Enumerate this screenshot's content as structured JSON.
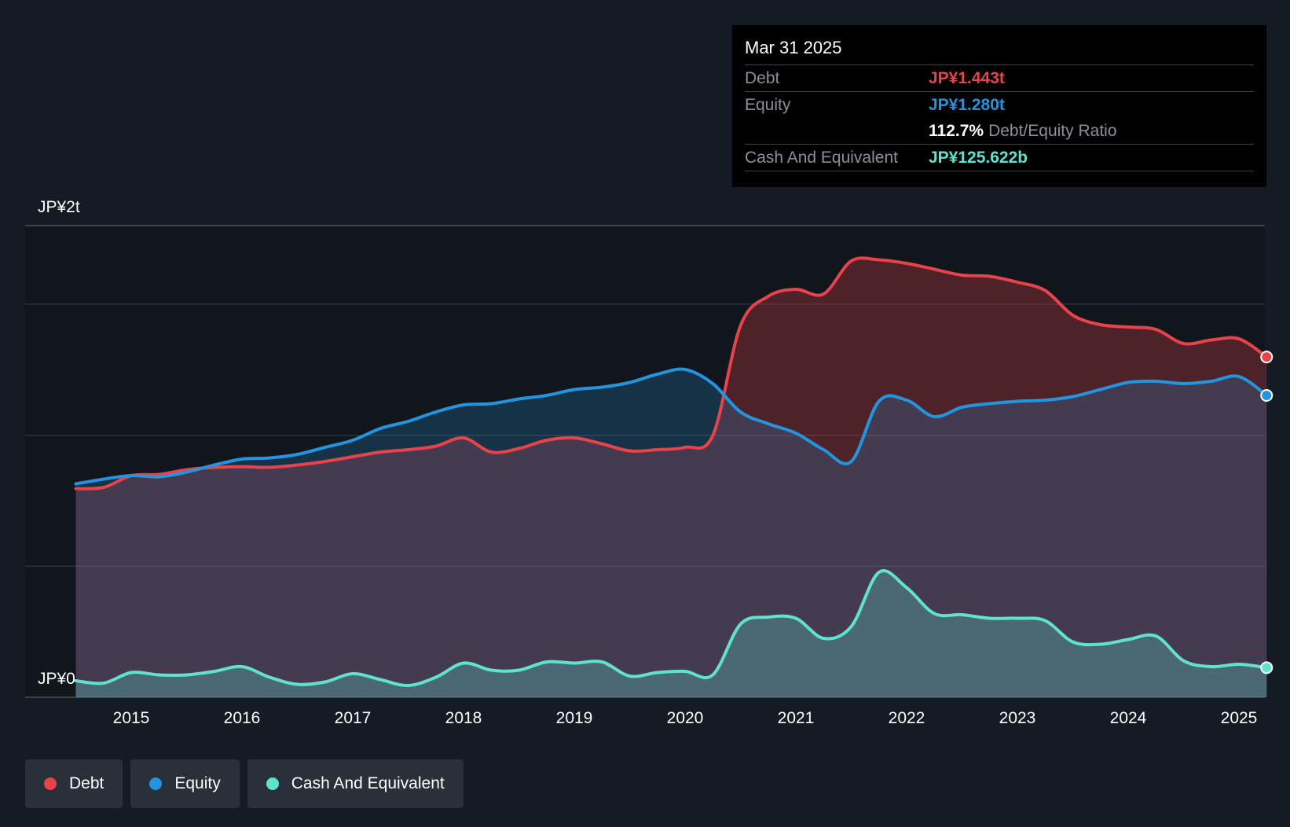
{
  "chart_data": {
    "type": "area",
    "title": "",
    "xlabel": "",
    "ylabel": "",
    "y_axis_labels": {
      "top": "JP¥2t",
      "bottom": "JP¥0"
    },
    "ylim": [
      0,
      2000
    ],
    "unit": "JP¥ billions",
    "x_ticks": [
      "2015",
      "2016",
      "2017",
      "2018",
      "2019",
      "2020",
      "2021",
      "2022",
      "2023",
      "2024",
      "2025"
    ],
    "x_range": [
      2014.0,
      2025.3
    ],
    "series": [
      {
        "name": "Debt",
        "color": "#e8434a",
        "points": [
          [
            2014.5,
            885
          ],
          [
            2014.75,
            890
          ],
          [
            2015.0,
            940
          ],
          [
            2015.25,
            945
          ],
          [
            2015.5,
            965
          ],
          [
            2015.75,
            975
          ],
          [
            2016.0,
            978
          ],
          [
            2016.25,
            975
          ],
          [
            2016.5,
            985
          ],
          [
            2016.75,
            1000
          ],
          [
            2017.0,
            1020
          ],
          [
            2017.25,
            1040
          ],
          [
            2017.5,
            1050
          ],
          [
            2017.75,
            1065
          ],
          [
            2018.0,
            1100
          ],
          [
            2018.25,
            1040
          ],
          [
            2018.5,
            1055
          ],
          [
            2018.75,
            1090
          ],
          [
            2019.0,
            1100
          ],
          [
            2019.25,
            1075
          ],
          [
            2019.5,
            1045
          ],
          [
            2019.75,
            1050
          ],
          [
            2020.0,
            1060
          ],
          [
            2020.25,
            1110
          ],
          [
            2020.5,
            1575
          ],
          [
            2020.75,
            1700
          ],
          [
            2021.0,
            1730
          ],
          [
            2021.25,
            1710
          ],
          [
            2021.5,
            1850
          ],
          [
            2021.75,
            1855
          ],
          [
            2022.0,
            1840
          ],
          [
            2022.25,
            1815
          ],
          [
            2022.5,
            1790
          ],
          [
            2022.75,
            1785
          ],
          [
            2023.0,
            1760
          ],
          [
            2023.25,
            1725
          ],
          [
            2023.5,
            1620
          ],
          [
            2023.75,
            1580
          ],
          [
            2024.0,
            1570
          ],
          [
            2024.25,
            1560
          ],
          [
            2024.5,
            1500
          ],
          [
            2024.75,
            1515
          ],
          [
            2025.0,
            1520
          ],
          [
            2025.25,
            1443
          ]
        ]
      },
      {
        "name": "Equity",
        "color": "#2394df",
        "points": [
          [
            2014.5,
            905
          ],
          [
            2014.75,
            925
          ],
          [
            2015.0,
            940
          ],
          [
            2015.25,
            935
          ],
          [
            2015.5,
            955
          ],
          [
            2015.75,
            985
          ],
          [
            2016.0,
            1010
          ],
          [
            2016.25,
            1015
          ],
          [
            2016.5,
            1030
          ],
          [
            2016.75,
            1060
          ],
          [
            2017.0,
            1090
          ],
          [
            2017.25,
            1140
          ],
          [
            2017.5,
            1170
          ],
          [
            2017.75,
            1210
          ],
          [
            2018.0,
            1240
          ],
          [
            2018.25,
            1245
          ],
          [
            2018.5,
            1265
          ],
          [
            2018.75,
            1280
          ],
          [
            2019.0,
            1305
          ],
          [
            2019.25,
            1315
          ],
          [
            2019.5,
            1335
          ],
          [
            2019.75,
            1370
          ],
          [
            2020.0,
            1390
          ],
          [
            2020.25,
            1330
          ],
          [
            2020.5,
            1210
          ],
          [
            2020.75,
            1160
          ],
          [
            2021.0,
            1120
          ],
          [
            2021.25,
            1050
          ],
          [
            2021.5,
            1000
          ],
          [
            2021.75,
            1255
          ],
          [
            2022.0,
            1260
          ],
          [
            2022.25,
            1190
          ],
          [
            2022.5,
            1230
          ],
          [
            2022.75,
            1245
          ],
          [
            2023.0,
            1255
          ],
          [
            2023.25,
            1260
          ],
          [
            2023.5,
            1275
          ],
          [
            2023.75,
            1305
          ],
          [
            2024.0,
            1335
          ],
          [
            2024.25,
            1340
          ],
          [
            2024.5,
            1330
          ],
          [
            2024.75,
            1340
          ],
          [
            2025.0,
            1360
          ],
          [
            2025.25,
            1280
          ]
        ]
      },
      {
        "name": "Cash And Equivalent",
        "color": "#5fe3cf",
        "points": [
          [
            2014.5,
            70
          ],
          [
            2014.75,
            60
          ],
          [
            2015.0,
            105
          ],
          [
            2015.25,
            95
          ],
          [
            2015.5,
            95
          ],
          [
            2015.75,
            110
          ],
          [
            2016.0,
            130
          ],
          [
            2016.25,
            85
          ],
          [
            2016.5,
            55
          ],
          [
            2016.75,
            65
          ],
          [
            2017.0,
            100
          ],
          [
            2017.25,
            75
          ],
          [
            2017.5,
            50
          ],
          [
            2017.75,
            85
          ],
          [
            2018.0,
            145
          ],
          [
            2018.25,
            115
          ],
          [
            2018.5,
            115
          ],
          [
            2018.75,
            150
          ],
          [
            2019.0,
            145
          ],
          [
            2019.25,
            150
          ],
          [
            2019.5,
            90
          ],
          [
            2019.75,
            105
          ],
          [
            2020.0,
            110
          ],
          [
            2020.25,
            95
          ],
          [
            2020.5,
            310
          ],
          [
            2020.75,
            340
          ],
          [
            2021.0,
            335
          ],
          [
            2021.25,
            250
          ],
          [
            2021.5,
            300
          ],
          [
            2021.75,
            530
          ],
          [
            2022.0,
            465
          ],
          [
            2022.25,
            355
          ],
          [
            2022.5,
            350
          ],
          [
            2022.75,
            335
          ],
          [
            2023.0,
            335
          ],
          [
            2023.25,
            325
          ],
          [
            2023.5,
            235
          ],
          [
            2023.75,
            225
          ],
          [
            2024.0,
            245
          ],
          [
            2024.25,
            260
          ],
          [
            2024.5,
            155
          ],
          [
            2024.75,
            130
          ],
          [
            2025.0,
            140
          ],
          [
            2025.25,
            125.622
          ]
        ]
      }
    ],
    "tooltip": {
      "date": "Mar 31 2025",
      "debt_label": "Debt",
      "debt_value": "JP¥1.443t",
      "equity_label": "Equity",
      "equity_value": "JP¥1.280t",
      "ratio_value": "112.7%",
      "ratio_label": "Debt/Equity Ratio",
      "cash_label": "Cash And Equivalent",
      "cash_value": "JP¥125.622b"
    },
    "legend": [
      {
        "label": "Debt",
        "color": "#e8434a"
      },
      {
        "label": "Equity",
        "color": "#2394df"
      },
      {
        "label": "Cash And Equivalent",
        "color": "#5fe3cf"
      }
    ]
  }
}
